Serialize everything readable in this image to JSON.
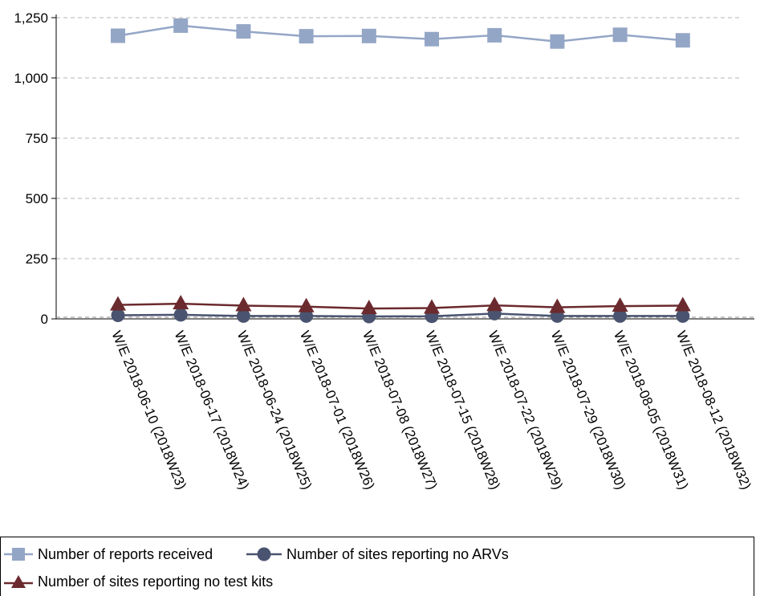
{
  "chart_data": {
    "type": "line",
    "categories": [
      "W/E 2018-06-10 (2018W23)",
      "W/E 2018-06-17 (2018W24)",
      "W/E 2018-06-24 (2018W25)",
      "W/E 2018-07-01 (2018W26)",
      "W/E 2018-07-08 (2018W27)",
      "W/E 2018-07-15 (2018W28)",
      "W/E 2018-07-22 (2018W29)",
      "W/E 2018-07-29 (2018W30)",
      "W/E 2018-08-05 (2018W31)",
      "W/E 2018-08-12 (2018W32)"
    ],
    "series": [
      {
        "name": "Number of reports received",
        "color": "#94a6c6",
        "marker": "square",
        "values": [
          1175,
          1217,
          1193,
          1173,
          1174,
          1161,
          1177,
          1151,
          1179,
          1156
        ]
      },
      {
        "name": "Number of sites reporting no ARVs",
        "color": "#4a5470",
        "marker": "circle",
        "values": [
          15,
          17,
          12,
          12,
          10,
          11,
          22,
          12,
          12,
          12
        ]
      },
      {
        "name": "Number of sites reporting no test kits",
        "color": "#6b2a2e",
        "marker": "triangle",
        "values": [
          58,
          63,
          55,
          51,
          43,
          45,
          56,
          48,
          53,
          55
        ]
      }
    ],
    "yticks": [
      "0",
      "250",
      "500",
      "750",
      "1,000",
      "1,250"
    ],
    "ylim": [
      0,
      1250
    ],
    "grid": true,
    "legend_position": "bottom"
  }
}
